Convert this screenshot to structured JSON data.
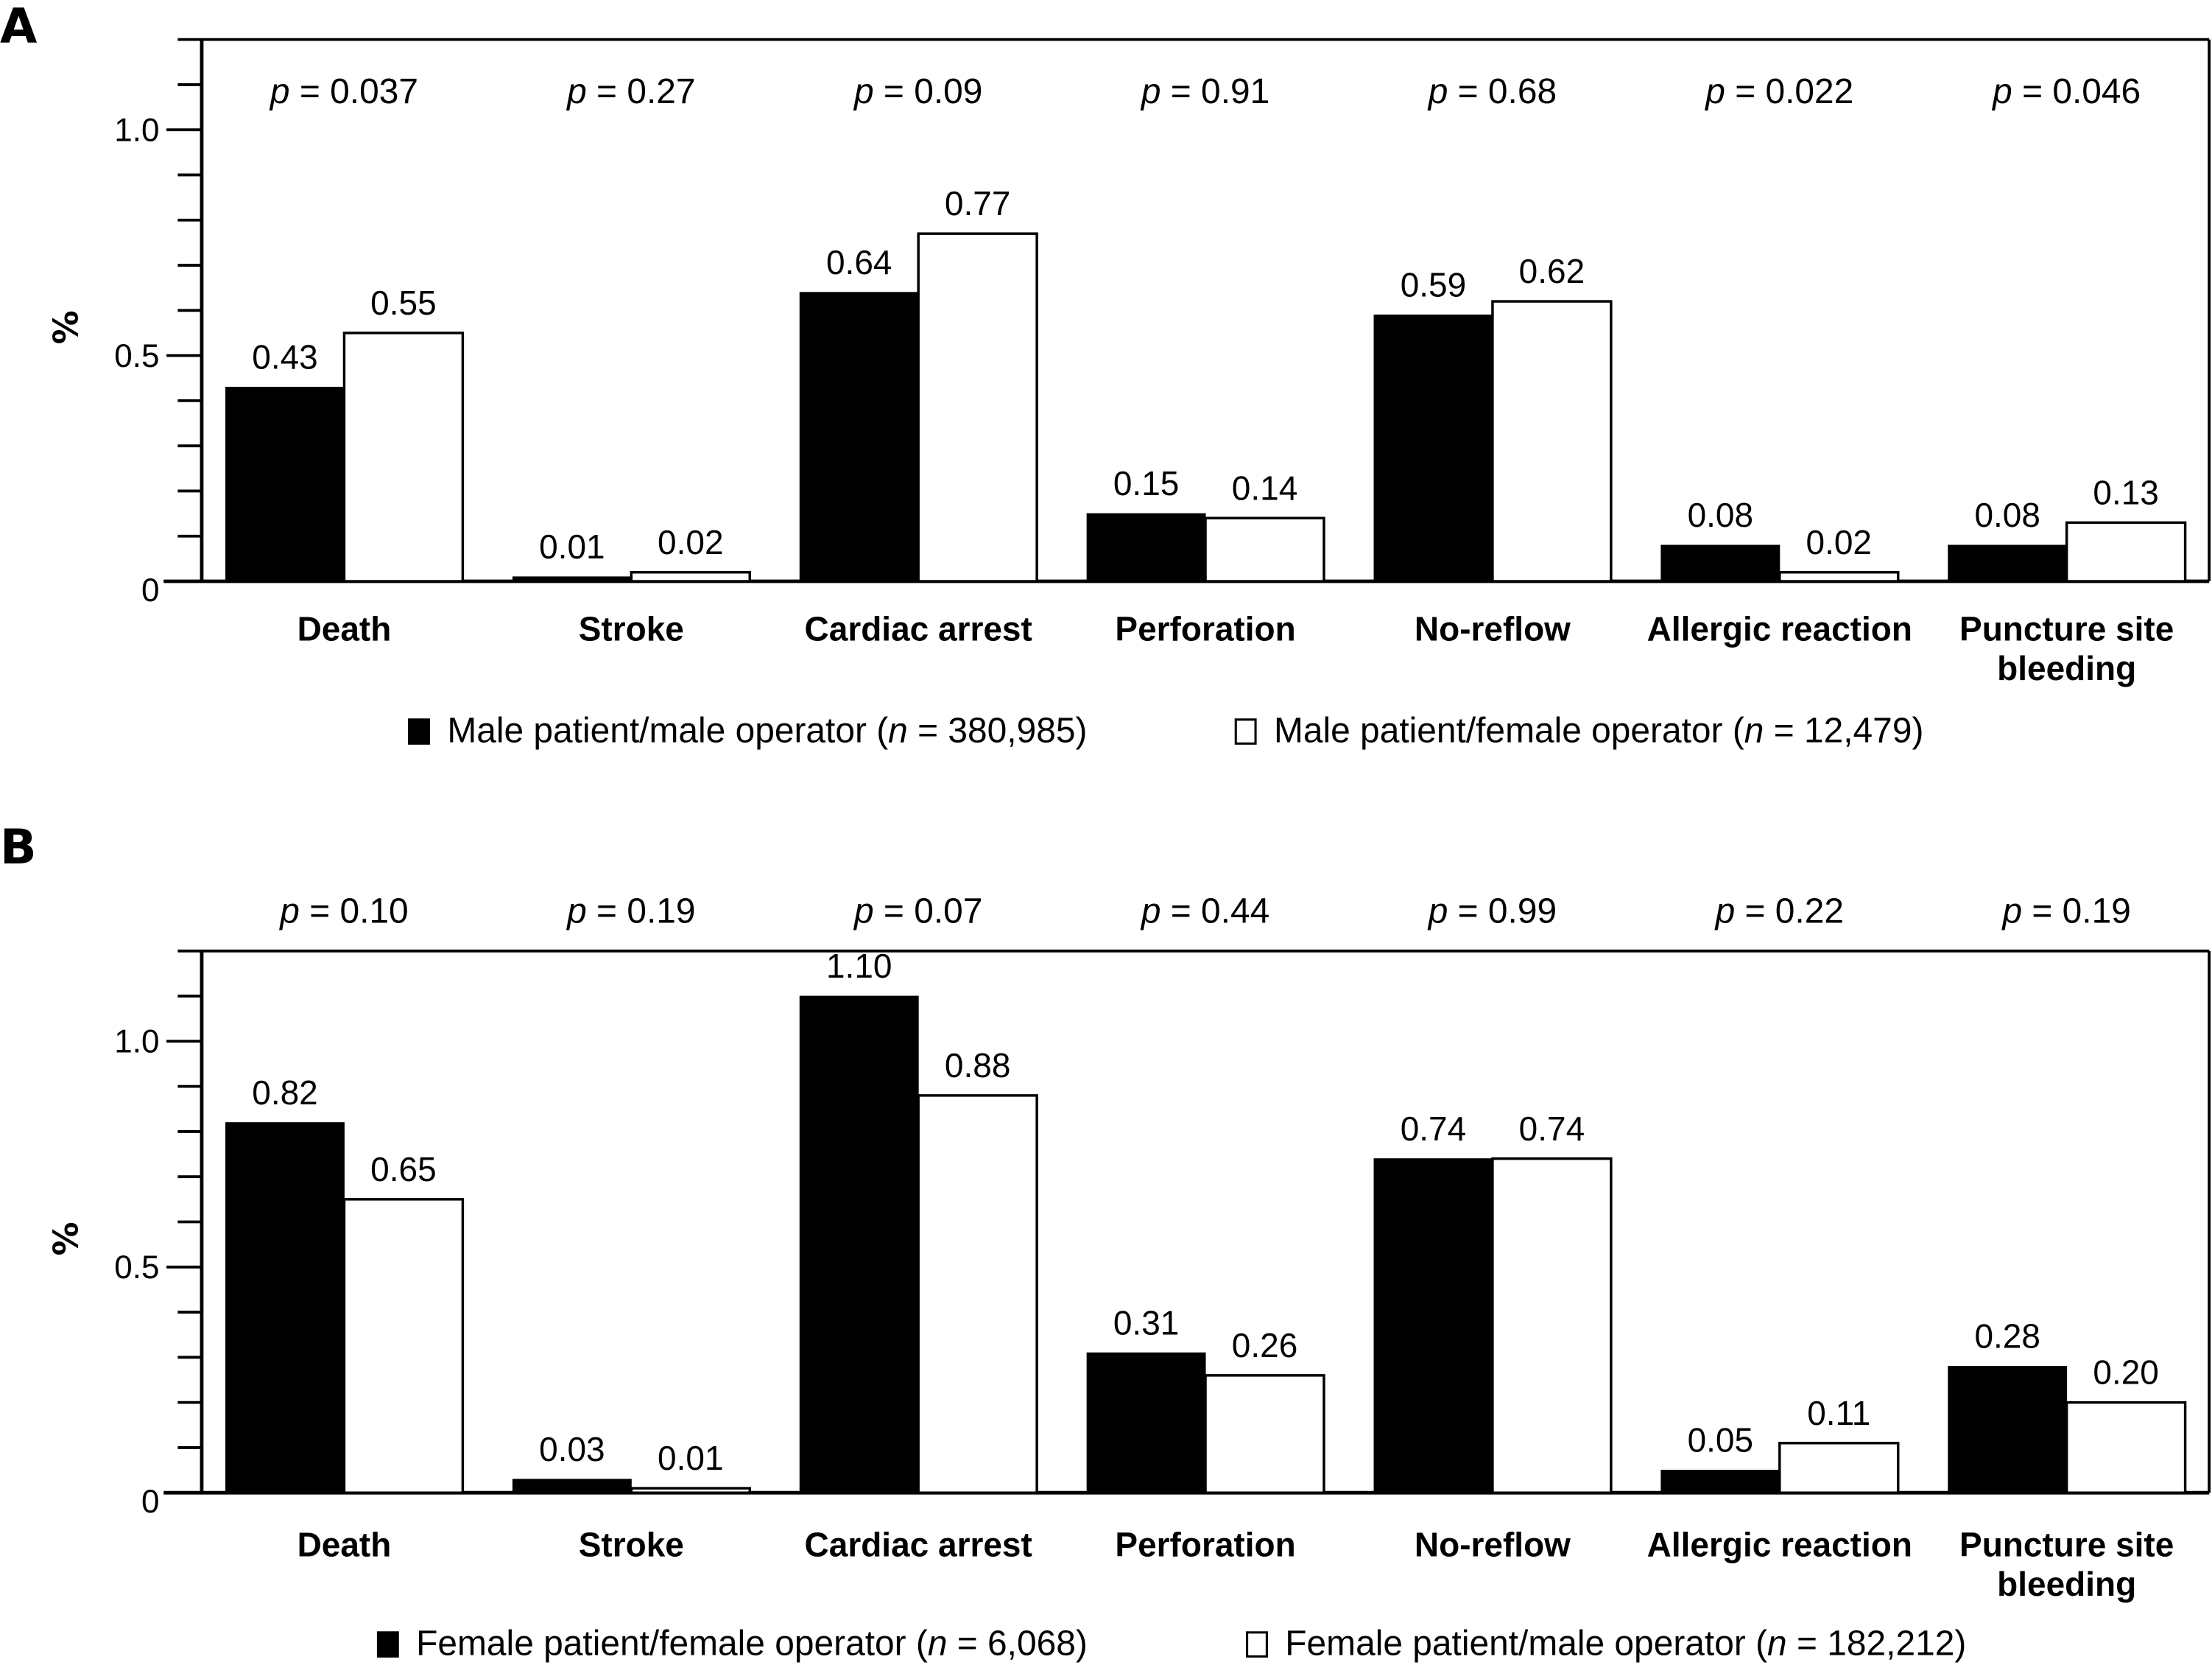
{
  "chart_data": [
    {
      "panel": "A",
      "type": "bar",
      "ylabel": "%",
      "xlabel": "",
      "ylim": [
        0,
        1.2
      ],
      "yticks_major": [
        0,
        0.5,
        1.0
      ],
      "ytick_labels": [
        "0",
        "0.5",
        "1.0"
      ],
      "yticks_minor_step": 0.1,
      "grid": false,
      "legend_position": "bottom",
      "categories": [
        "Death",
        "Stroke",
        "Cardiac arrest",
        "Perforation",
        "No-reflow",
        "Allergic reaction",
        "Puncture site bleeding"
      ],
      "category_lines": [
        [
          "Death"
        ],
        [
          "Stroke"
        ],
        [
          "Cardiac arrest"
        ],
        [
          "Perforation"
        ],
        [
          "No-reflow"
        ],
        [
          "Allergic reaction"
        ],
        [
          "Puncture site",
          "bleeding"
        ]
      ],
      "p_values": [
        "0.037",
        "0.27",
        "0.09",
        "0.91",
        "0.68",
        "0.022",
        "0.046"
      ],
      "series": [
        {
          "name": "Male patient/male operator",
          "n": "380,985",
          "fill": "#000000",
          "values": [
            0.43,
            0.01,
            0.64,
            0.15,
            0.59,
            0.08,
            0.08
          ],
          "labels": [
            "0.43",
            "0.01",
            "0.64",
            "0.15",
            "0.59",
            "0.08",
            "0.08"
          ]
        },
        {
          "name": "Male patient/female operator",
          "n": "12,479",
          "fill": "#ffffff",
          "values": [
            0.55,
            0.02,
            0.77,
            0.14,
            0.62,
            0.02,
            0.13
          ],
          "labels": [
            "0.55",
            "0.02",
            "0.77",
            "0.14",
            "0.62",
            "0.02",
            "0.13"
          ]
        }
      ]
    },
    {
      "panel": "B",
      "type": "bar",
      "ylabel": "%",
      "xlabel": "",
      "ylim": [
        0,
        1.2
      ],
      "yticks_major": [
        0,
        0.5,
        1.0
      ],
      "ytick_labels": [
        "0",
        "0.5",
        "1.0"
      ],
      "yticks_minor_step": 0.1,
      "grid": false,
      "legend_position": "bottom",
      "categories": [
        "Death",
        "Stroke",
        "Cardiac arrest",
        "Perforation",
        "No-reflow",
        "Allergic reaction",
        "Puncture site bleeding"
      ],
      "category_lines": [
        [
          "Death"
        ],
        [
          "Stroke"
        ],
        [
          "Cardiac arrest"
        ],
        [
          "Perforation"
        ],
        [
          "No-reflow"
        ],
        [
          "Allergic reaction"
        ],
        [
          "Puncture site",
          "bleeding"
        ]
      ],
      "p_values": [
        "0.10",
        "0.19",
        "0.07",
        "0.44",
        "0.99",
        "0.22",
        "0.19"
      ],
      "series": [
        {
          "name": "Female patient/female operator",
          "n": "6,068",
          "fill": "#000000",
          "values": [
            0.82,
            0.03,
            1.1,
            0.31,
            0.74,
            0.05,
            0.28
          ],
          "labels": [
            "0.82",
            "0.03",
            "1.10",
            "0.31",
            "0.74",
            "0.05",
            "0.28"
          ]
        },
        {
          "name": "Female patient/male operator",
          "n": "182,212",
          "fill": "#ffffff",
          "values": [
            0.65,
            0.01,
            0.88,
            0.26,
            0.74,
            0.11,
            0.2
          ],
          "labels": [
            "0.65",
            "0.01",
            "0.88",
            "0.26",
            "0.74",
            "0.11",
            "0.20"
          ]
        }
      ]
    }
  ],
  "text": {
    "p_prefix": "p",
    "p_equals": " = ",
    "n_prefix": "n",
    "n_equals": " = "
  }
}
